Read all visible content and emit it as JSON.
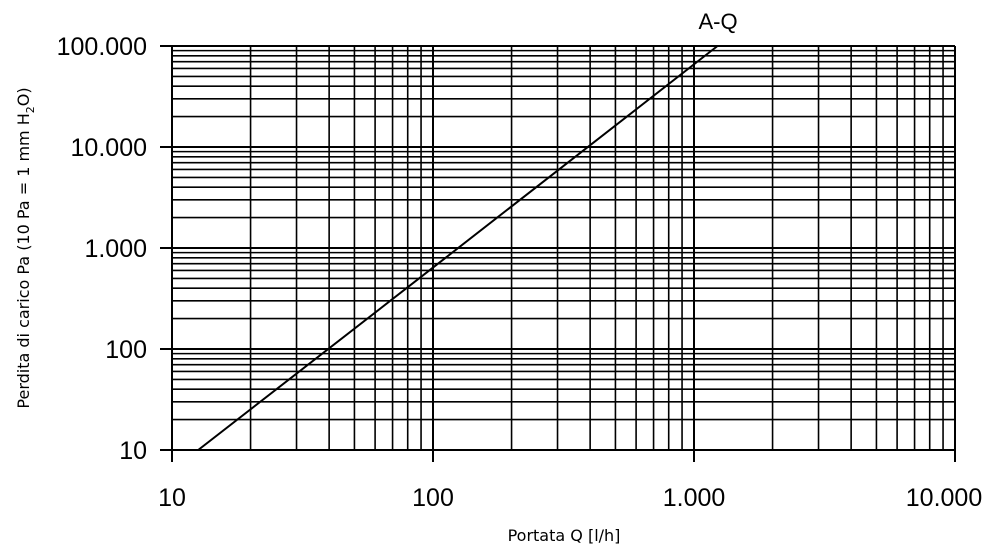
{
  "chart_data": {
    "type": "line",
    "x_scale": "log",
    "y_scale": "log",
    "xlim": [
      10,
      10000
    ],
    "ylim": [
      10,
      100000
    ],
    "x_ticks": [
      10,
      100,
      1000,
      10000
    ],
    "x_tick_labels": [
      "10",
      "100",
      "1.000",
      "10.000"
    ],
    "y_ticks": [
      10,
      100,
      1000,
      10000,
      100000
    ],
    "y_tick_labels": [
      "10",
      "100",
      "1.000",
      "10.000",
      "100.000"
    ],
    "xlabel": "Portata Q [l/h]",
    "ylabel": {
      "prefix": "Perdita di carico Pa (10 Pa = 1 mm H",
      "subscript": "2",
      "suffix": "O)"
    },
    "grid": true,
    "series": [
      {
        "name": "A-Q",
        "x": [
          12.6,
          100,
          1230
        ],
        "y": [
          10,
          640,
          100000
        ]
      }
    ]
  }
}
